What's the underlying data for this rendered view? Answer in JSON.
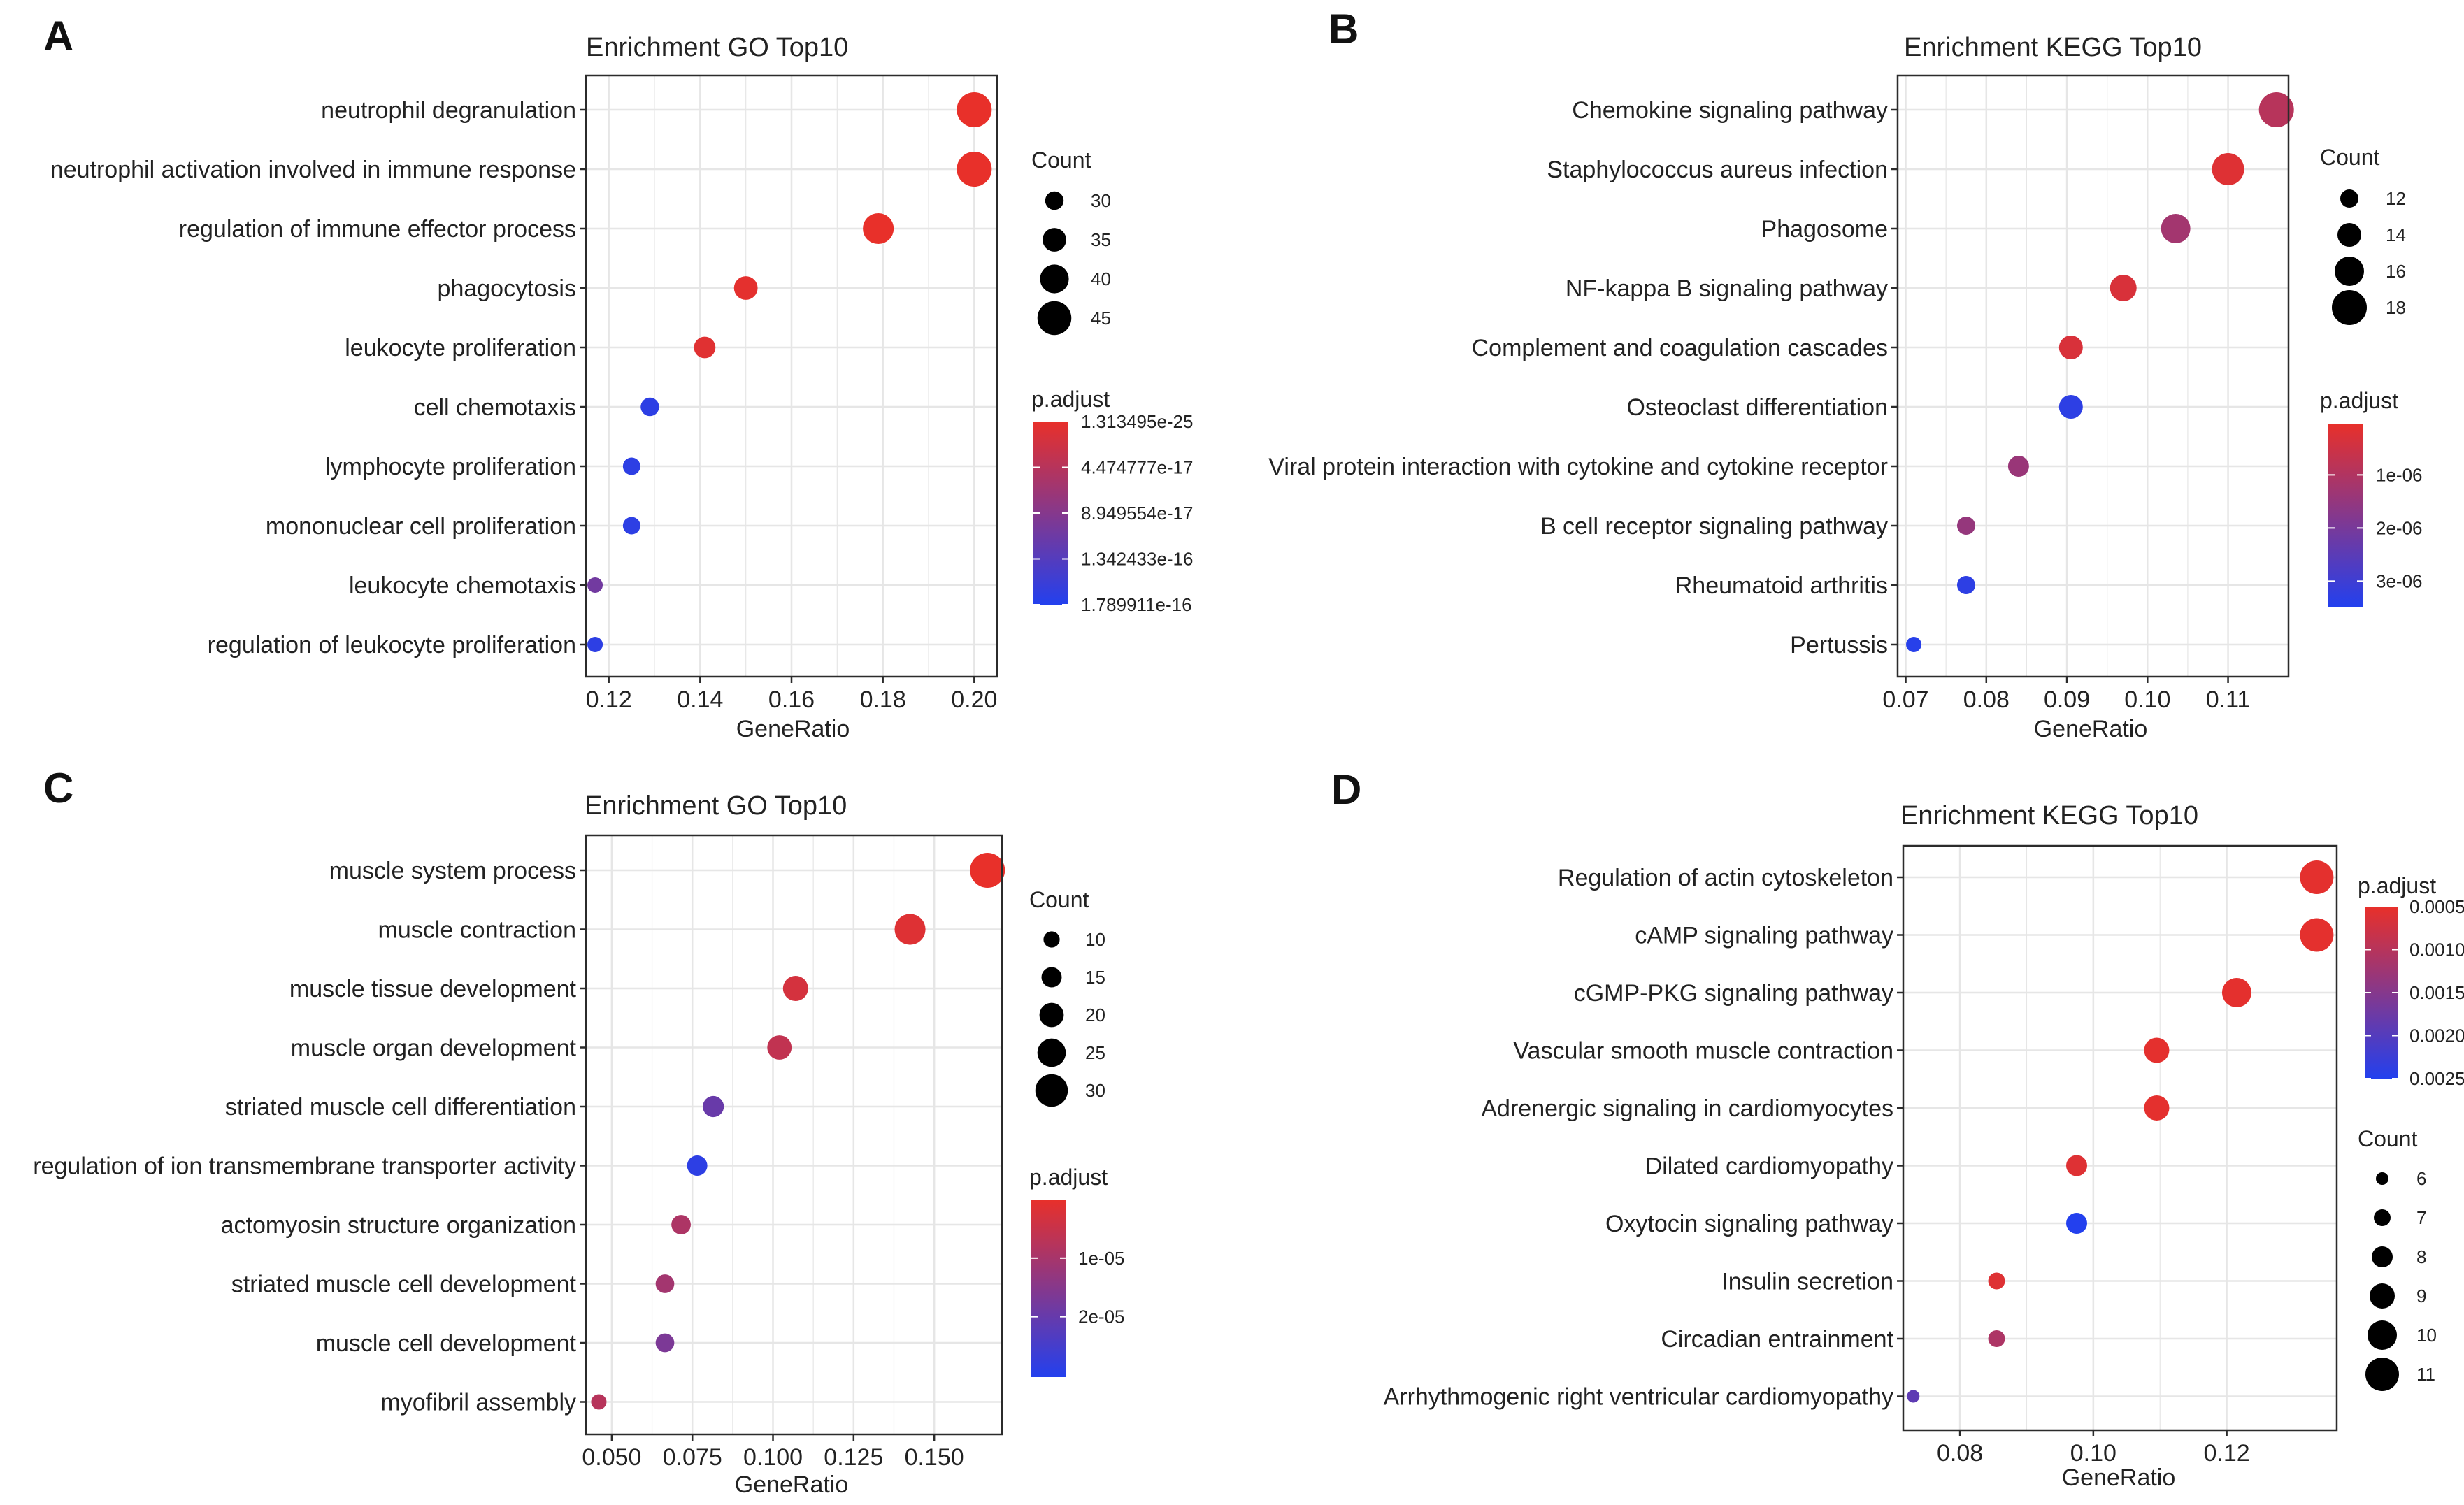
{
  "chart_data": [
    {
      "panel": "A",
      "type": "scatter",
      "title": "Enrichment GO Top10",
      "xlabel": "GeneRatio",
      "xlim": [
        0.115,
        0.205
      ],
      "xticks": [
        0.12,
        0.14,
        0.16,
        0.18,
        0.2
      ],
      "xtick_labels": [
        "0.12",
        "0.14",
        "0.16",
        "0.18",
        "0.20"
      ],
      "categories": [
        "neutrophil degranulation",
        "neutrophil activation involved in immune response",
        "regulation of immune effector process",
        "phagocytosis",
        "leukocyte proliferation",
        "cell chemotaxis",
        "lymphocyte proliferation",
        "mononuclear cell proliferation",
        "leukocyte chemotaxis",
        "regulation of leukocyte proliferation"
      ],
      "x": [
        0.2,
        0.2,
        0.179,
        0.15,
        0.141,
        0.129,
        0.125,
        0.125,
        0.117,
        0.117
      ],
      "count": [
        46,
        46,
        42,
        35,
        33,
        30,
        29,
        29,
        27,
        27
      ],
      "color_t": [
        0.0,
        0.0,
        0.0,
        0.02,
        0.04,
        0.95,
        0.95,
        0.95,
        0.6,
        0.95
      ],
      "legend_count": {
        "title": "Count",
        "values": [
          30,
          35,
          40,
          45
        ],
        "labels": [
          "30",
          "35",
          "40",
          "45"
        ]
      },
      "legend_color": {
        "title": "p.adjust",
        "labels": [
          "1.313495e-25",
          "4.474777e-17",
          "8.949554e-17",
          "1.342433e-16",
          "1.789911e-16"
        ],
        "label_t": [
          0.0,
          0.25,
          0.5,
          0.75,
          1.0
        ]
      }
    },
    {
      "panel": "B",
      "type": "scatter",
      "title": "Enrichment KEGG Top10",
      "xlabel": "GeneRatio",
      "xlim": [
        0.069,
        0.1175
      ],
      "xticks": [
        0.07,
        0.08,
        0.09,
        0.1,
        0.11
      ],
      "xtick_labels": [
        "0.07",
        "0.08",
        "0.09",
        "0.10",
        "0.11"
      ],
      "categories": [
        "Chemokine signaling pathway",
        "Staphylococcus aureus infection",
        "Phagosome",
        "NF-kappa B signaling pathway",
        "Complement and coagulation cascades",
        "Osteoclast differentiation",
        "Viral protein interaction with cytokine and cytokine receptor",
        "B cell receptor signaling pathway",
        "Rheumatoid arthritis",
        "Pertussis"
      ],
      "x": [
        0.116,
        0.11,
        0.1035,
        0.097,
        0.0905,
        0.0905,
        0.084,
        0.0775,
        0.0775,
        0.071
      ],
      "count": [
        18,
        17,
        16,
        15,
        14,
        14,
        13,
        12,
        12,
        11
      ],
      "color_t": [
        0.25,
        0.05,
        0.35,
        0.08,
        0.08,
        0.95,
        0.4,
        0.42,
        0.95,
        0.98
      ],
      "legend_count": {
        "title": "Count",
        "values": [
          12,
          14,
          16,
          18
        ],
        "labels": [
          "12",
          "14",
          "16",
          "18"
        ]
      },
      "legend_color": {
        "title": "p.adjust",
        "labels": [
          "1e-06",
          "2e-06",
          "3e-06"
        ],
        "label_t": [
          0.28,
          0.57,
          0.86
        ]
      }
    },
    {
      "panel": "C",
      "type": "scatter",
      "title": "Enrichment GO Top10",
      "xlabel": "GeneRatio",
      "xlim": [
        0.042,
        0.171
      ],
      "xticks": [
        0.05,
        0.075,
        0.1,
        0.125,
        0.15
      ],
      "xtick_labels": [
        "0.050",
        "0.075",
        "0.100",
        "0.125",
        "0.150"
      ],
      "categories": [
        "muscle system process",
        "muscle contraction",
        "muscle tissue development",
        "muscle organ development",
        "striated muscle cell differentiation",
        "regulation of ion transmembrane transporter activity",
        "actomyosin structure organization",
        "striated muscle cell development",
        "muscle cell development",
        "myofibril assembly"
      ],
      "x": [
        0.1665,
        0.1425,
        0.107,
        0.102,
        0.0815,
        0.0765,
        0.0715,
        0.0665,
        0.0665,
        0.046
      ],
      "count": [
        33,
        28,
        21,
        20,
        16,
        15,
        14,
        13,
        13,
        9
      ],
      "color_t": [
        0.0,
        0.05,
        0.1,
        0.2,
        0.65,
        0.95,
        0.3,
        0.35,
        0.55,
        0.25
      ],
      "legend_count": {
        "title": "Count",
        "values": [
          10,
          15,
          20,
          25,
          30
        ],
        "labels": [
          "10",
          "15",
          "20",
          "25",
          "30"
        ]
      },
      "legend_color": {
        "title": "p.adjust",
        "labels": [
          "1e-05",
          "2e-05"
        ],
        "label_t": [
          0.33,
          0.66
        ]
      }
    },
    {
      "panel": "D",
      "type": "scatter",
      "title": "Enrichment KEGG Top10",
      "xlabel": "GeneRatio",
      "xlim": [
        0.0715,
        0.1365
      ],
      "xticks": [
        0.08,
        0.1,
        0.12
      ],
      "xtick_labels": [
        "0.08",
        "0.10",
        "0.12"
      ],
      "categories": [
        "Regulation of actin cytoskeleton",
        "cAMP signaling pathway",
        "cGMP-PKG signaling pathway",
        "Vascular smooth muscle contraction",
        "Adrenergic signaling in cardiomyocytes",
        "Dilated cardiomyopathy",
        "Oxytocin signaling pathway",
        "Insulin secretion",
        "Circadian entrainment",
        "Arrhythmogenic right ventricular cardiomyopathy"
      ],
      "x": [
        0.1335,
        0.1335,
        0.1215,
        0.1095,
        0.1095,
        0.0975,
        0.0975,
        0.0855,
        0.0855,
        0.073
      ],
      "count": [
        11,
        11,
        10,
        9,
        9,
        8,
        8,
        7,
        7,
        6
      ],
      "color_t": [
        0.02,
        0.02,
        0.02,
        0.02,
        0.02,
        0.05,
        1.0,
        0.05,
        0.3,
        0.7
      ],
      "legend_count": {
        "title": "Count",
        "values": [
          6,
          7,
          8,
          9,
          10,
          11
        ],
        "labels": [
          "6",
          "7",
          "8",
          "9",
          "10",
          "11"
        ]
      },
      "legend_color": {
        "title": "p.adjust",
        "labels": [
          "0.0005",
          "0.0010",
          "0.0015",
          "0.0020",
          "0.0025"
        ],
        "label_t": [
          0.0,
          0.25,
          0.5,
          0.75,
          1.0
        ]
      }
    }
  ],
  "colors": {
    "high": "#e8302a",
    "low": "#2340ee",
    "panel_bg": "#ffffff",
    "grid": "#e6e6e6",
    "border": "#2b2b2b"
  }
}
